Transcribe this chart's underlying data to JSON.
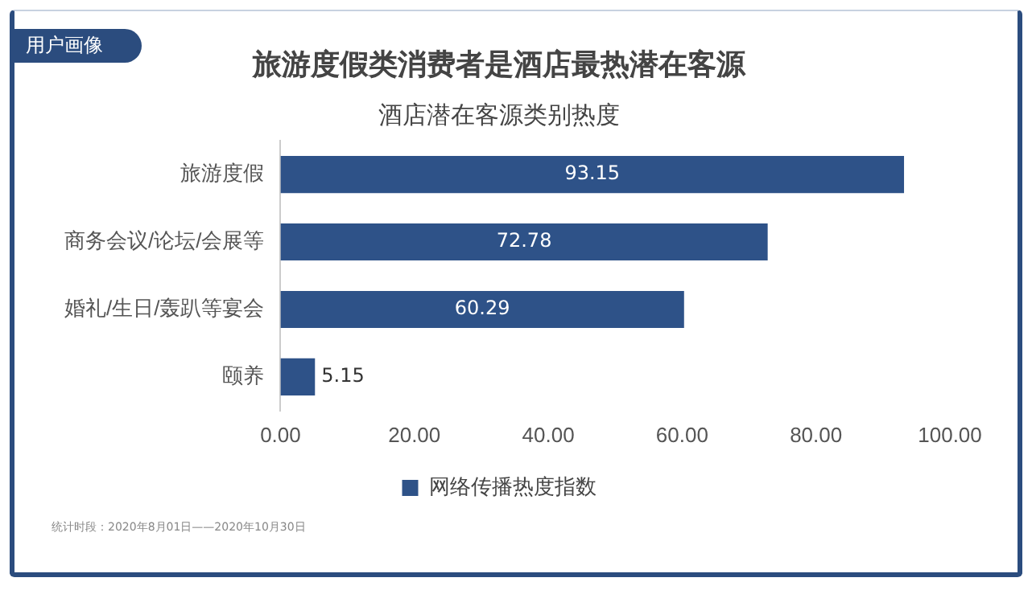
{
  "chart_data": {
    "type": "bar",
    "orientation": "horizontal",
    "title": "旅游度假类消费者是酒店最热潜在客源",
    "subtitle": "酒店潜在客源类别热度",
    "categories": [
      "旅游度假",
      "商务会议/论坛/会展等",
      "婚礼/生日/轰趴等宴会",
      "颐养"
    ],
    "series": [
      {
        "name": "网络传播热度指数",
        "color": "#2e5288",
        "values": [
          93.15,
          72.78,
          60.29,
          5.15
        ]
      }
    ],
    "xlim": [
      0,
      100
    ],
    "xticks": [
      {
        "value": 0,
        "label": "0.00"
      },
      {
        "value": 20,
        "label": "20.00"
      },
      {
        "value": 40,
        "label": "40.00"
      },
      {
        "value": 60,
        "label": "60.00"
      },
      {
        "value": 80,
        "label": "80.00"
      },
      {
        "value": 100,
        "label": "100.00"
      }
    ],
    "grid": false,
    "legend": "bottom",
    "data_labels": true,
    "annotations": [
      "用户画像",
      "统计时段：2020年8月01日——2020年10月30日"
    ]
  }
}
